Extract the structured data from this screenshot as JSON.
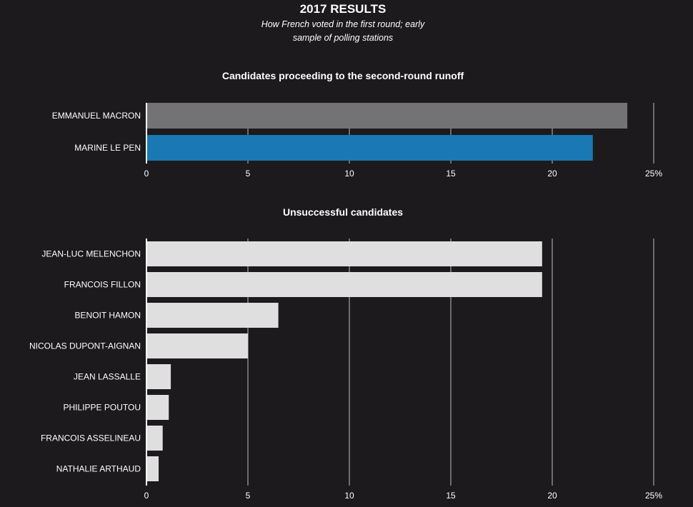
{
  "header": {
    "title": "2017 RESULTS",
    "subtitle_line1": "How French voted in the first round; early",
    "subtitle_line2": "sample of polling stations"
  },
  "chart_data": [
    {
      "type": "bar",
      "orientation": "horizontal",
      "title": "Candidates proceeding to the second-round runoff",
      "categories": [
        "EMMANUEL MACRON",
        "MARINE LE PEN"
      ],
      "values": [
        23.7,
        22.0
      ],
      "colors": [
        "#737275",
        "#1a78b4"
      ],
      "xlim": [
        0,
        25
      ],
      "ticks": [
        0,
        5,
        10,
        15,
        20,
        25
      ],
      "tick_labels": [
        "0",
        "5",
        "10",
        "15",
        "20",
        "25%"
      ],
      "grid": true
    },
    {
      "type": "bar",
      "orientation": "horizontal",
      "title": "Unsuccessful candidates",
      "categories": [
        "JEAN-LUC MELENCHON",
        "FRANCOIS FILLON",
        "BENOIT HAMON",
        "NICOLAS DUPONT-AIGNAN",
        "JEAN LASSALLE",
        "PHILIPPE POUTOU",
        "FRANCOIS ASSELINEAU",
        "NATHALIE ARTHAUD"
      ],
      "values": [
        19.5,
        19.5,
        6.5,
        5.0,
        1.2,
        1.1,
        0.8,
        0.6
      ],
      "colors": [
        "#dfdfe0"
      ],
      "xlim": [
        0,
        25
      ],
      "ticks": [
        0,
        5,
        10,
        15,
        20,
        25
      ],
      "tick_labels": [
        "0",
        "5",
        "10",
        "15",
        "20",
        "25%"
      ],
      "grid": true
    }
  ]
}
